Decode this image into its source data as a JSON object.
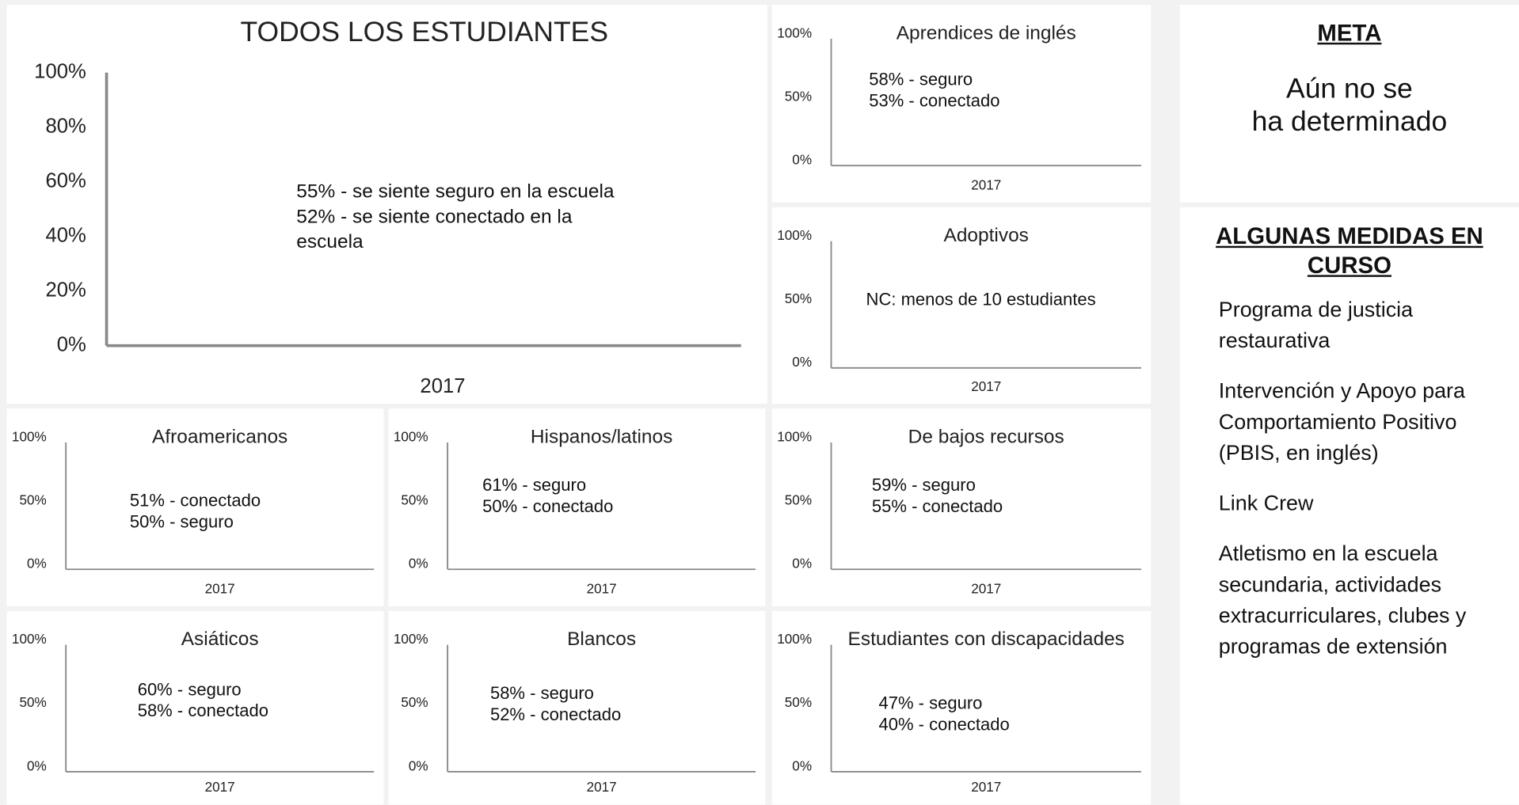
{
  "chart_data": [
    {
      "type": "bar",
      "title": "TODOS LOS ESTUDIANTES",
      "categories": [
        "2017"
      ],
      "ylim": [
        0,
        100
      ],
      "yticks": [
        {
          "value": 0,
          "label": "0%"
        },
        {
          "value": 20,
          "label": "20%"
        },
        {
          "value": 40,
          "label": "40%"
        },
        {
          "value": 60,
          "label": "60%"
        },
        {
          "value": 80,
          "label": "80%"
        },
        {
          "value": 100,
          "label": "100%"
        }
      ],
      "annotations": [
        "55% - se siente seguro en la escuela",
        "52% - se siente conectado en la escuela"
      ]
    },
    {
      "type": "bar",
      "title": "Aprendices de inglés",
      "categories": [
        "2017"
      ],
      "ylim": [
        0,
        100
      ],
      "yticks": [
        {
          "value": 0,
          "label": "0%"
        },
        {
          "value": 50,
          "label": "50%"
        },
        {
          "value": 100,
          "label": "100%"
        }
      ],
      "annotations": [
        "58% - seguro",
        "53% - conectado"
      ]
    },
    {
      "type": "bar",
      "title": "Adoptivos",
      "categories": [
        "2017"
      ],
      "ylim": [
        0,
        100
      ],
      "yticks": [
        {
          "value": 0,
          "label": "0%"
        },
        {
          "value": 50,
          "label": "50%"
        },
        {
          "value": 100,
          "label": "100%"
        }
      ],
      "annotations": [
        "NC: menos de 10 estudiantes"
      ]
    },
    {
      "type": "bar",
      "title": "Afroamericanos",
      "categories": [
        "2017"
      ],
      "ylim": [
        0,
        100
      ],
      "yticks": [
        {
          "value": 0,
          "label": "0%"
        },
        {
          "value": 50,
          "label": "50%"
        },
        {
          "value": 100,
          "label": "100%"
        }
      ],
      "annotations": [
        "51% - conectado",
        "50% - seguro"
      ]
    },
    {
      "type": "bar",
      "title": "Hispanos/latinos",
      "categories": [
        "2017"
      ],
      "ylim": [
        0,
        100
      ],
      "yticks": [
        {
          "value": 0,
          "label": "0%"
        },
        {
          "value": 50,
          "label": "50%"
        },
        {
          "value": 100,
          "label": "100%"
        }
      ],
      "annotations": [
        "61% - seguro",
        "50% - conectado"
      ]
    },
    {
      "type": "bar",
      "title": "De bajos recursos",
      "categories": [
        "2017"
      ],
      "ylim": [
        0,
        100
      ],
      "yticks": [
        {
          "value": 0,
          "label": "0%"
        },
        {
          "value": 50,
          "label": "50%"
        },
        {
          "value": 100,
          "label": "100%"
        }
      ],
      "annotations": [
        "59% - seguro",
        "55% - conectado"
      ]
    },
    {
      "type": "bar",
      "title": "Asiáticos",
      "categories": [
        "2017"
      ],
      "ylim": [
        0,
        100
      ],
      "yticks": [
        {
          "value": 0,
          "label": "0%"
        },
        {
          "value": 50,
          "label": "50%"
        },
        {
          "value": 100,
          "label": "100%"
        }
      ],
      "annotations": [
        "60% - seguro",
        "58% - conectado"
      ]
    },
    {
      "type": "bar",
      "title": "Blancos",
      "categories": [
        "2017"
      ],
      "ylim": [
        0,
        100
      ],
      "yticks": [
        {
          "value": 0,
          "label": "0%"
        },
        {
          "value": 50,
          "label": "50%"
        },
        {
          "value": 100,
          "label": "100%"
        }
      ],
      "annotations": [
        "58% - seguro",
        "52% - conectado"
      ]
    },
    {
      "type": "bar",
      "title": "Estudiantes con discapacidades",
      "categories": [
        "2017"
      ],
      "ylim": [
        0,
        100
      ],
      "yticks": [
        {
          "value": 0,
          "label": "0%"
        },
        {
          "value": 50,
          "label": "50%"
        },
        {
          "value": 100,
          "label": "100%"
        }
      ],
      "annotations": [
        "47% - seguro",
        "40% - conectado"
      ]
    }
  ],
  "meta": {
    "title": "META",
    "lines": [
      "Aún no se",
      "ha determinado"
    ]
  },
  "medidas": {
    "title": "ALGUNAS MEDIDAS EN CURSO",
    "items": [
      "Programa de justicia restaurativa",
      "Intervención y Apoyo para Comportamiento Positivo (PBIS, en inglés)",
      "Link Crew",
      "Atletismo en la escuela secundaria, actividades extracurriculares, clubes y programas de extensión"
    ]
  }
}
